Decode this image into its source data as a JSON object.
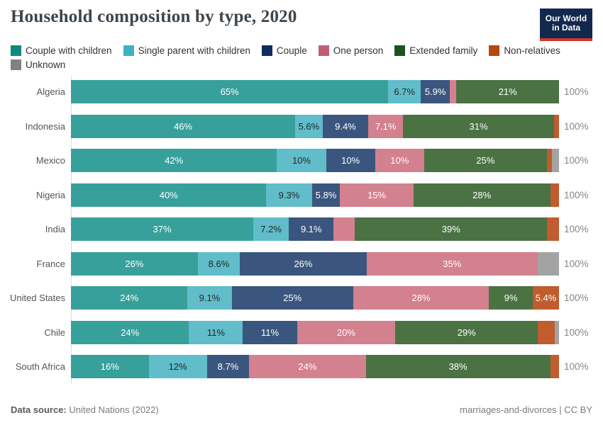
{
  "header": {
    "title": "Household composition by type, 2020",
    "logo_line1": "Our World",
    "logo_line2": "in Data"
  },
  "chart_data": {
    "type": "bar",
    "stacked": true,
    "orientation": "horizontal",
    "unit": "%",
    "title": "Household composition by type, 2020",
    "legend_position": "top",
    "categories": [
      "Algeria",
      "Indonesia",
      "Mexico",
      "Nigeria",
      "India",
      "France",
      "United States",
      "Chile",
      "South Africa"
    ],
    "total_label": "100%",
    "series": [
      {
        "name": "Couple with children",
        "legend_color": "#0e8a7d",
        "bar_color": "#38a09a",
        "label_color": "#ffffff",
        "values": [
          65,
          46,
          42,
          40,
          37,
          26,
          24,
          24,
          16
        ],
        "labels": [
          "65%",
          "46%",
          "42%",
          "40%",
          "37%",
          "26%",
          "24%",
          "24%",
          "16%"
        ]
      },
      {
        "name": "Single parent with children",
        "legend_color": "#3eb2c1",
        "bar_color": "#60bdc9",
        "label_color": "#262626",
        "values": [
          6.7,
          5.6,
          10,
          9.3,
          7.2,
          8.6,
          9.1,
          11,
          12
        ],
        "labels": [
          "6.7%",
          "5.6%",
          "10%",
          "9.3%",
          "7.2%",
          "8.6%",
          "9.1%",
          "11%",
          "12%"
        ]
      },
      {
        "name": "Couple",
        "legend_color": "#102c5e",
        "bar_color": "#3a567e",
        "label_color": "#ffffff",
        "values": [
          5.9,
          9.4,
          10,
          5.8,
          9.1,
          26,
          25,
          11,
          8.7
        ],
        "labels": [
          "5.9%",
          "9.4%",
          "10%",
          "5.8%",
          "9.1%",
          "26%",
          "25%",
          "11%",
          "8.7%"
        ]
      },
      {
        "name": "One person",
        "legend_color": "#c25e74",
        "bar_color": "#d3808f",
        "label_color": "#ffffff",
        "values": [
          1.4,
          7.1,
          10,
          15,
          4.3,
          35,
          28,
          20,
          24
        ],
        "labels": [
          null,
          "7.1%",
          "10%",
          "15%",
          null,
          "35%",
          "28%",
          "20%",
          "24%"
        ]
      },
      {
        "name": "Extended family",
        "legend_color": "#1d5220",
        "bar_color": "#4a7243",
        "label_color": "#ffffff",
        "values": [
          21,
          31,
          25,
          28,
          39,
          0,
          9,
          29,
          38
        ],
        "labels": [
          "21%",
          "31%",
          "25%",
          "28%",
          "39%",
          null,
          "9%",
          "29%",
          "38%"
        ]
      },
      {
        "name": "Non-relatives",
        "legend_color": "#b24a0c",
        "bar_color": "#c05c2e",
        "label_color": "#ffffff",
        "values": [
          0,
          1.0,
          1.0,
          1.8,
          2.4,
          0,
          5.4,
          3.5,
          1.8
        ],
        "labels": [
          null,
          null,
          null,
          null,
          null,
          null,
          "5.4%",
          null,
          null
        ]
      },
      {
        "name": "Unknown",
        "legend_color": "#818181",
        "bar_color": "#a3a3a3",
        "label_color": "#ffffff",
        "values": [
          0,
          0,
          1.5,
          0,
          0,
          4.4,
          0,
          0.8,
          0
        ],
        "labels": [
          null,
          null,
          null,
          null,
          null,
          null,
          null,
          null,
          null
        ]
      }
    ]
  },
  "footer": {
    "datasource_label": "Data source:",
    "datasource_value": "United Nations (2022)",
    "note": "marriages-and-divorces | CC BY"
  }
}
